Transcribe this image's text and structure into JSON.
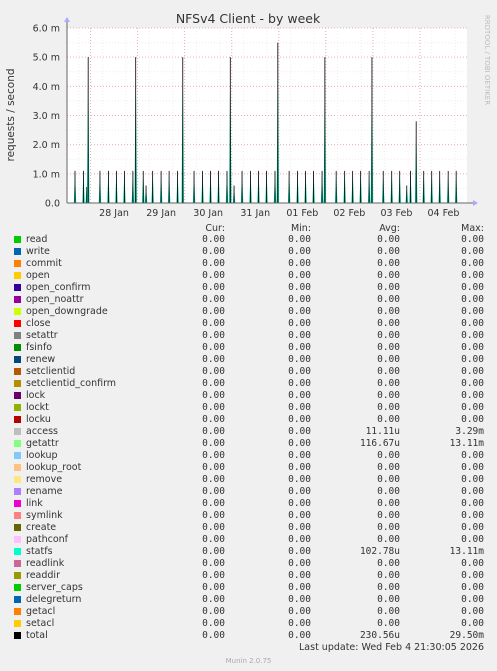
{
  "chart_data": {
    "type": "line",
    "title": "NFSv4 Client - by week",
    "ylabel": "requests / second",
    "side_label": "RRDTOOL / TOBI OETIKER",
    "ylim": [
      0,
      6.0
    ],
    "y_ticks": [
      0,
      1.0,
      2.0,
      3.0,
      4.0,
      5.0,
      6.0
    ],
    "y_tick_labels": [
      "0.0",
      "1.0 m",
      "2.0 m",
      "3.0 m",
      "4.0 m",
      "5.0 m",
      "6.0 m"
    ],
    "x_tick_labels": [
      "28 Jan",
      "29 Jan",
      "30 Jan",
      "31 Jan",
      "01 Feb",
      "02 Feb",
      "03 Feb",
      "04 Feb"
    ],
    "grid": true,
    "x_day_range": [
      0,
      8.5
    ],
    "x_day_ticks": [
      1,
      2,
      3,
      4,
      5,
      6,
      7,
      8
    ],
    "series_points_desc": "x in days from left edge of plot, y in m requests/second",
    "spikes": [
      {
        "x": 0.17,
        "y": 1.1
      },
      {
        "x": 0.35,
        "y": 1.1
      },
      {
        "x": 0.42,
        "y": 0.55
      },
      {
        "x": 0.45,
        "y": 5.0
      },
      {
        "x": 0.7,
        "y": 1.1
      },
      {
        "x": 0.88,
        "y": 1.1
      },
      {
        "x": 1.05,
        "y": 1.1
      },
      {
        "x": 1.22,
        "y": 1.1
      },
      {
        "x": 1.4,
        "y": 1.1
      },
      {
        "x": 1.46,
        "y": 5.0
      },
      {
        "x": 1.62,
        "y": 1.1
      },
      {
        "x": 1.68,
        "y": 0.6
      },
      {
        "x": 1.82,
        "y": 1.1
      },
      {
        "x": 2.0,
        "y": 1.1
      },
      {
        "x": 2.17,
        "y": 1.1
      },
      {
        "x": 2.35,
        "y": 1.1
      },
      {
        "x": 2.46,
        "y": 5.0
      },
      {
        "x": 2.7,
        "y": 1.1
      },
      {
        "x": 2.88,
        "y": 1.1
      },
      {
        "x": 3.05,
        "y": 1.1
      },
      {
        "x": 3.22,
        "y": 1.1
      },
      {
        "x": 3.4,
        "y": 1.1
      },
      {
        "x": 3.47,
        "y": 5.0
      },
      {
        "x": 3.55,
        "y": 0.6
      },
      {
        "x": 3.72,
        "y": 1.1
      },
      {
        "x": 3.9,
        "y": 1.1
      },
      {
        "x": 4.07,
        "y": 1.1
      },
      {
        "x": 4.24,
        "y": 1.1
      },
      {
        "x": 4.42,
        "y": 1.1
      },
      {
        "x": 4.48,
        "y": 5.5
      },
      {
        "x": 4.72,
        "y": 1.1
      },
      {
        "x": 4.9,
        "y": 1.1
      },
      {
        "x": 5.07,
        "y": 1.1
      },
      {
        "x": 5.24,
        "y": 1.1
      },
      {
        "x": 5.42,
        "y": 1.1
      },
      {
        "x": 5.48,
        "y": 5.0
      },
      {
        "x": 5.72,
        "y": 1.1
      },
      {
        "x": 5.9,
        "y": 1.1
      },
      {
        "x": 6.07,
        "y": 1.1
      },
      {
        "x": 6.24,
        "y": 1.1
      },
      {
        "x": 6.42,
        "y": 1.1
      },
      {
        "x": 6.48,
        "y": 5.0
      },
      {
        "x": 6.72,
        "y": 1.1
      },
      {
        "x": 6.9,
        "y": 1.1
      },
      {
        "x": 7.07,
        "y": 1.1
      },
      {
        "x": 7.22,
        "y": 0.6
      },
      {
        "x": 7.3,
        "y": 1.1
      },
      {
        "x": 7.42,
        "y": 2.8
      },
      {
        "x": 7.58,
        "y": 1.1
      },
      {
        "x": 7.75,
        "y": 1.1
      },
      {
        "x": 7.92,
        "y": 1.1
      },
      {
        "x": 8.1,
        "y": 1.1
      },
      {
        "x": 8.27,
        "y": 1.1
      }
    ]
  },
  "legend": {
    "headers": {
      "cur": "Cur:",
      "min": "Min:",
      "avg": "Avg:",
      "max": "Max:"
    },
    "rows": [
      {
        "name": "read",
        "color": "#00cc00",
        "cur": "0.00",
        "min": "0.00",
        "avg": "0.00",
        "max": "0.00"
      },
      {
        "name": "write",
        "color": "#0066b3",
        "cur": "0.00",
        "min": "0.00",
        "avg": "0.00",
        "max": "0.00"
      },
      {
        "name": "commit",
        "color": "#ff8000",
        "cur": "0.00",
        "min": "0.00",
        "avg": "0.00",
        "max": "0.00"
      },
      {
        "name": "open",
        "color": "#ffcc00",
        "cur": "0.00",
        "min": "0.00",
        "avg": "0.00",
        "max": "0.00"
      },
      {
        "name": "open_confirm",
        "color": "#330099",
        "cur": "0.00",
        "min": "0.00",
        "avg": "0.00",
        "max": "0.00"
      },
      {
        "name": "open_noattr",
        "color": "#990099",
        "cur": "0.00",
        "min": "0.00",
        "avg": "0.00",
        "max": "0.00"
      },
      {
        "name": "open_downgrade",
        "color": "#ccff00",
        "cur": "0.00",
        "min": "0.00",
        "avg": "0.00",
        "max": "0.00"
      },
      {
        "name": "close",
        "color": "#ff0000",
        "cur": "0.00",
        "min": "0.00",
        "avg": "0.00",
        "max": "0.00"
      },
      {
        "name": "setattr",
        "color": "#808080",
        "cur": "0.00",
        "min": "0.00",
        "avg": "0.00",
        "max": "0.00"
      },
      {
        "name": "fsinfo",
        "color": "#008f00",
        "cur": "0.00",
        "min": "0.00",
        "avg": "0.00",
        "max": "0.00"
      },
      {
        "name": "renew",
        "color": "#00487d",
        "cur": "0.00",
        "min": "0.00",
        "avg": "0.00",
        "max": "0.00"
      },
      {
        "name": "setclientid",
        "color": "#b35a00",
        "cur": "0.00",
        "min": "0.00",
        "avg": "0.00",
        "max": "0.00"
      },
      {
        "name": "setclientid_confirm",
        "color": "#b38f00",
        "cur": "0.00",
        "min": "0.00",
        "avg": "0.00",
        "max": "0.00"
      },
      {
        "name": "lock",
        "color": "#6b006b",
        "cur": "0.00",
        "min": "0.00",
        "avg": "0.00",
        "max": "0.00"
      },
      {
        "name": "lockt",
        "color": "#8fb300",
        "cur": "0.00",
        "min": "0.00",
        "avg": "0.00",
        "max": "0.00"
      },
      {
        "name": "locku",
        "color": "#b30000",
        "cur": "0.00",
        "min": "0.00",
        "avg": "0.00",
        "max": "0.00"
      },
      {
        "name": "access",
        "color": "#bebebe",
        "cur": "0.00",
        "min": "0.00",
        "avg": "11.11u",
        "max": "3.29m"
      },
      {
        "name": "getattr",
        "color": "#80ff80",
        "cur": "0.00",
        "min": "0.00",
        "avg": "116.67u",
        "max": "13.11m"
      },
      {
        "name": "lookup",
        "color": "#80c9ff",
        "cur": "0.00",
        "min": "0.00",
        "avg": "0.00",
        "max": "0.00"
      },
      {
        "name": "lookup_root",
        "color": "#ffc080",
        "cur": "0.00",
        "min": "0.00",
        "avg": "0.00",
        "max": "0.00"
      },
      {
        "name": "remove",
        "color": "#ffe680",
        "cur": "0.00",
        "min": "0.00",
        "avg": "0.00",
        "max": "0.00"
      },
      {
        "name": "rename",
        "color": "#aa80ff",
        "cur": "0.00",
        "min": "0.00",
        "avg": "0.00",
        "max": "0.00"
      },
      {
        "name": "link",
        "color": "#ee00cc",
        "cur": "0.00",
        "min": "0.00",
        "avg": "0.00",
        "max": "0.00"
      },
      {
        "name": "symlink",
        "color": "#ff8080",
        "cur": "0.00",
        "min": "0.00",
        "avg": "0.00",
        "max": "0.00"
      },
      {
        "name": "create",
        "color": "#666600",
        "cur": "0.00",
        "min": "0.00",
        "avg": "0.00",
        "max": "0.00"
      },
      {
        "name": "pathconf",
        "color": "#ffbfff",
        "cur": "0.00",
        "min": "0.00",
        "avg": "0.00",
        "max": "0.00"
      },
      {
        "name": "statfs",
        "color": "#00ffcc",
        "cur": "0.00",
        "min": "0.00",
        "avg": "102.78u",
        "max": "13.11m"
      },
      {
        "name": "readlink",
        "color": "#cc6699",
        "cur": "0.00",
        "min": "0.00",
        "avg": "0.00",
        "max": "0.00"
      },
      {
        "name": "readdir",
        "color": "#999900",
        "cur": "0.00",
        "min": "0.00",
        "avg": "0.00",
        "max": "0.00"
      },
      {
        "name": "server_caps",
        "color": "#00cc00",
        "cur": "0.00",
        "min": "0.00",
        "avg": "0.00",
        "max": "0.00"
      },
      {
        "name": "delegreturn",
        "color": "#0066b3",
        "cur": "0.00",
        "min": "0.00",
        "avg": "0.00",
        "max": "0.00"
      },
      {
        "name": "getacl",
        "color": "#ff8000",
        "cur": "0.00",
        "min": "0.00",
        "avg": "0.00",
        "max": "0.00"
      },
      {
        "name": "setacl",
        "color": "#ffcc00",
        "cur": "0.00",
        "min": "0.00",
        "avg": "0.00",
        "max": "0.00"
      },
      {
        "name": "total",
        "color": "#000000",
        "cur": "0.00",
        "min": "0.00",
        "avg": "230.56u",
        "max": "29.50m"
      }
    ]
  },
  "footer": {
    "last_update": "Last update: Wed Feb  4 21:30:05 2026",
    "munin": "Munin 2.0.75"
  }
}
